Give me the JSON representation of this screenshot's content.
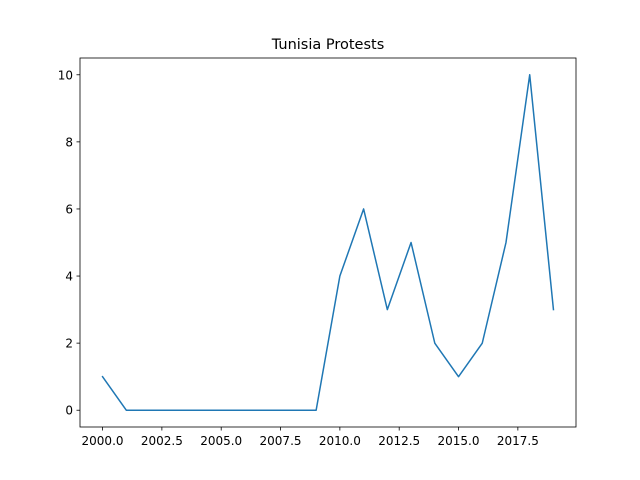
{
  "chart_data": {
    "type": "line",
    "title": "Tunisia Protests",
    "xlabel": "",
    "ylabel": "",
    "x": [
      2000,
      2001,
      2002,
      2003,
      2004,
      2005,
      2006,
      2007,
      2008,
      2009,
      2010,
      2011,
      2012,
      2013,
      2014,
      2015,
      2016,
      2017,
      2018,
      2019
    ],
    "series": [
      {
        "values": [
          1,
          0,
          0,
          0,
          0,
          0,
          0,
          0,
          0,
          0,
          4,
          6,
          3,
          5,
          2,
          1,
          2,
          5,
          10,
          3
        ],
        "color": "#1f77b4"
      }
    ],
    "xlim": [
      1999.05,
      2019.95
    ],
    "ylim": [
      -0.5,
      10.5
    ],
    "xticks": [
      2000.0,
      2002.5,
      2005.0,
      2007.5,
      2010.0,
      2012.5,
      2015.0,
      2017.5
    ],
    "xtick_labels": [
      "2000.0",
      "2002.5",
      "2005.0",
      "2007.5",
      "2010.0",
      "2012.5",
      "2015.0",
      "2017.5"
    ],
    "yticks": [
      0,
      2,
      4,
      6,
      8,
      10
    ],
    "ytick_labels": [
      "0",
      "2",
      "4",
      "6",
      "8",
      "10"
    ],
    "grid": false,
    "legend": "none"
  }
}
